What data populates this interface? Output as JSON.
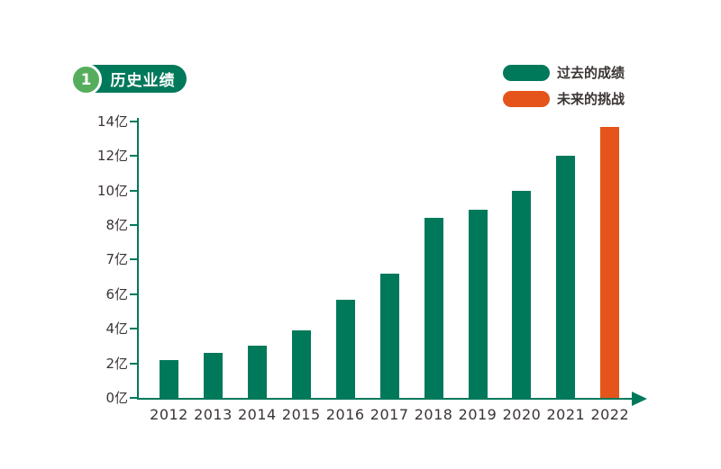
{
  "colors": {
    "dark_green": "#00795B",
    "light_green": "#56AE5C",
    "orange": "#E5541B",
    "axis": "#00795B",
    "label_text": "#3B3534",
    "badge_text": "#FFFFFF"
  },
  "badge": {
    "number": "1",
    "title": "历史业绩"
  },
  "legend": {
    "position": "top-right",
    "items": [
      {
        "label": "过去的成绩",
        "color": "#00795B"
      },
      {
        "label": "未来的挑战",
        "color": "#E5541B"
      }
    ]
  },
  "chart_data": {
    "type": "bar",
    "title": "历史业绩",
    "unit": "亿",
    "xlabel": "",
    "ylabel": "",
    "grid": false,
    "categories": [
      "2012",
      "2013",
      "2014",
      "2015",
      "2016",
      "2017",
      "2018",
      "2019",
      "2020",
      "2021",
      "2022"
    ],
    "values": [
      2.2,
      2.6,
      3.0,
      3.9,
      5.7,
      6.6,
      8.4,
      8.9,
      10.0,
      12.0,
      13.7
    ],
    "series": [
      {
        "name": "过去的成绩",
        "color": "#00795B"
      },
      {
        "name": "未来的挑战",
        "color": "#E5541B"
      }
    ],
    "bar_series_index": [
      0,
      0,
      0,
      0,
      0,
      0,
      0,
      0,
      0,
      0,
      1
    ],
    "y_axis": {
      "tick_values": [
        0,
        2,
        4,
        6,
        7,
        8,
        10,
        12,
        14
      ],
      "tick_labels": [
        "0亿",
        "2亿",
        "4亿",
        "6亿",
        "7亿",
        "8亿",
        "10亿",
        "12亿",
        "14亿"
      ],
      "ticks_evenly_spaced": true
    },
    "x_axis": {
      "arrow": true
    }
  }
}
